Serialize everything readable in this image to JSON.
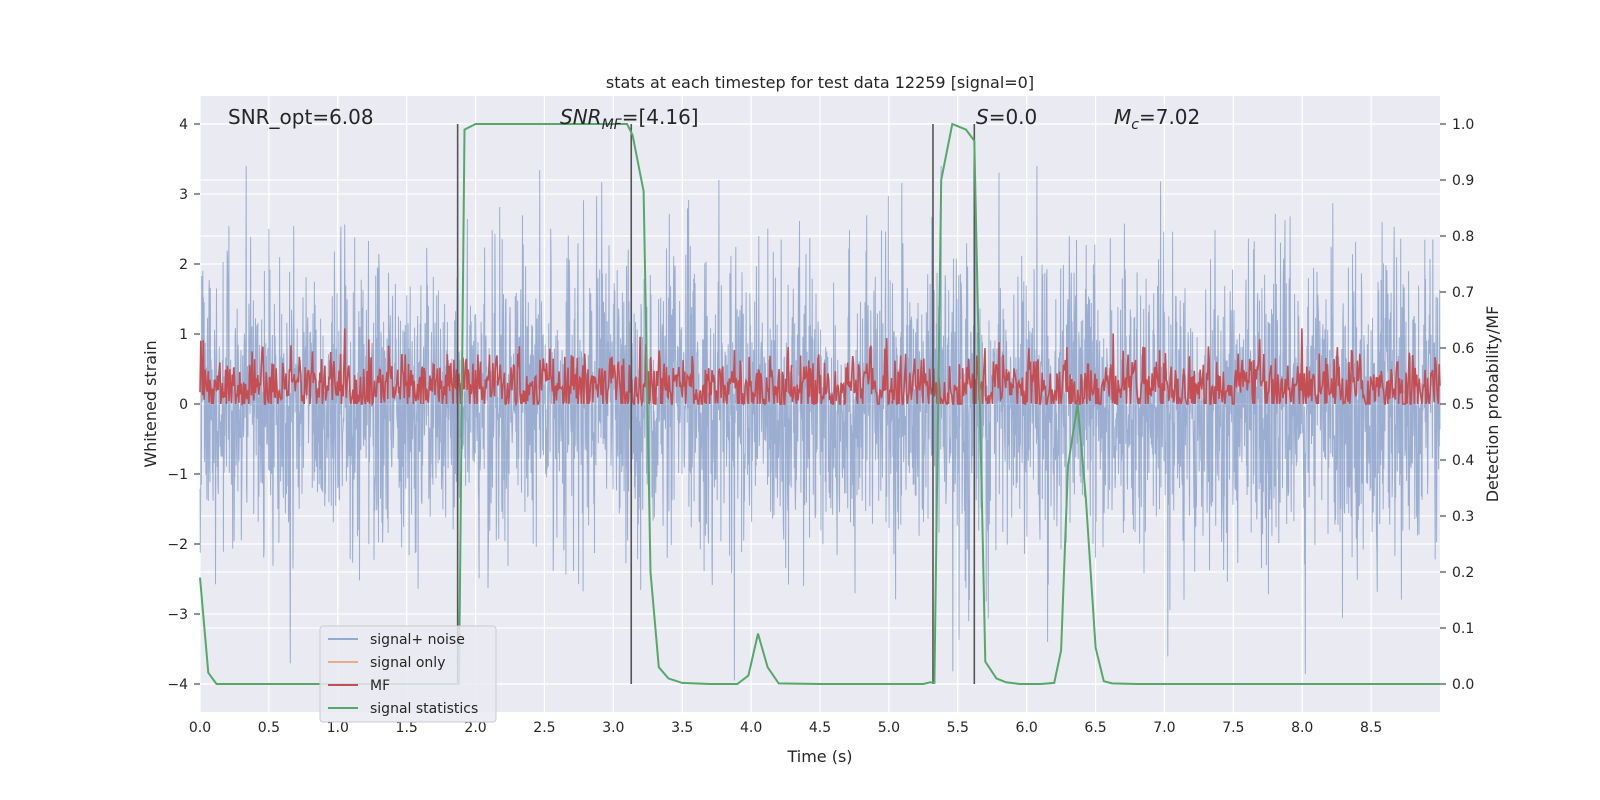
{
  "chart_data": {
    "type": "line",
    "title": "stats at each timestep for test data 12259 [signal=0]",
    "xlabel": "Time (s)",
    "ylabel_left": "Whitened strain",
    "ylabel_right": "Detection probability/MF",
    "xlim": [
      0.0,
      9.0
    ],
    "ylim_left": [
      -4.4,
      4.4
    ],
    "ylim_right": [
      -0.05,
      1.05
    ],
    "x_ticks": [
      "0.0",
      "0.5",
      "1.0",
      "1.5",
      "2.0",
      "2.5",
      "3.0",
      "3.5",
      "4.0",
      "4.5",
      "5.0",
      "5.5",
      "6.0",
      "6.5",
      "7.0",
      "7.5",
      "8.0",
      "8.5"
    ],
    "y_left_ticks": [
      "4",
      "3",
      "2",
      "1",
      "0",
      "−1",
      "−2",
      "−3",
      "−4"
    ],
    "y_right_ticks": [
      "1.0",
      "0.9",
      "0.8",
      "0.7",
      "0.6",
      "0.5",
      "0.4",
      "0.3",
      "0.2",
      "0.1",
      "0.0"
    ],
    "annotations": {
      "snr_opt": "SNR_opt=6.08",
      "snr_mf": "SNR",
      "snr_mf_sub": "MF",
      "snr_mf_val": "=[4.16]",
      "s_sym": "S",
      "s_val": "=0.0",
      "mc_sym": "M",
      "mc_sub": "c",
      "mc_val": "=7.02"
    },
    "vertical_lines_x": [
      1.87,
      3.13,
      5.32,
      5.62
    ],
    "series": [
      {
        "name": "signal+ noise",
        "color": "#4c72b0",
        "axis": "left",
        "description": "whitened noise, approx ±3 amplitude"
      },
      {
        "name": "signal only",
        "color": "#dd8452",
        "axis": "left",
        "values": []
      },
      {
        "name": "MF",
        "color": "#c44e52",
        "axis": "right",
        "description": "matched filter output, approx 0.5–0.63"
      },
      {
        "name": "signal statistics",
        "color": "#55a868",
        "axis": "right",
        "x": [
          0.0,
          0.06,
          0.12,
          0.2,
          0.5,
          1.0,
          1.5,
          1.86,
          1.88,
          1.92,
          2.0,
          2.5,
          3.0,
          3.1,
          3.14,
          3.22,
          3.27,
          3.33,
          3.4,
          3.5,
          3.7,
          3.9,
          3.98,
          4.05,
          4.12,
          4.2,
          4.5,
          5.0,
          5.25,
          5.3,
          5.33,
          5.38,
          5.46,
          5.56,
          5.62,
          5.7,
          5.78,
          5.85,
          5.95,
          6.1,
          6.2,
          6.25,
          6.3,
          6.37,
          6.43,
          6.5,
          6.56,
          6.62,
          6.8,
          7.5,
          8.0,
          8.5,
          9.0
        ],
        "y": [
          0.19,
          0.02,
          0.0,
          0.0,
          0.0,
          0.0,
          0.0,
          0.0,
          0.0,
          0.99,
          1.0,
          1.0,
          1.0,
          1.0,
          0.98,
          0.88,
          0.2,
          0.03,
          0.01,
          0.002,
          0.0,
          0.0,
          0.015,
          0.09,
          0.03,
          0.001,
          0.0,
          0.0,
          0.0,
          0.003,
          0.002,
          0.9,
          1.0,
          0.99,
          0.97,
          0.04,
          0.01,
          0.003,
          0.0,
          0.0,
          0.002,
          0.06,
          0.39,
          0.5,
          0.33,
          0.065,
          0.005,
          0.001,
          0.0,
          0.0,
          0.0,
          0.0,
          0.0
        ]
      }
    ],
    "legend": {
      "placement": "lower-left",
      "entries": [
        "signal+ noise",
        "signal only",
        "MF",
        "signal statistics"
      ]
    },
    "grid": true,
    "colors": {
      "plot_bg": "#eaeaf2",
      "grid": "#ffffff",
      "vline": "#555555",
      "text": "#262626"
    }
  }
}
